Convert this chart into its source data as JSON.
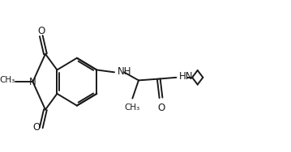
{
  "background_color": "#ffffff",
  "line_color": "#1a1a1a",
  "text_color": "#1a1a1a",
  "linewidth": 1.4,
  "figsize": [
    3.59,
    1.88
  ],
  "dpi": 100,
  "xlim": [
    0,
    10
  ],
  "ylim": [
    0,
    5.2
  ]
}
